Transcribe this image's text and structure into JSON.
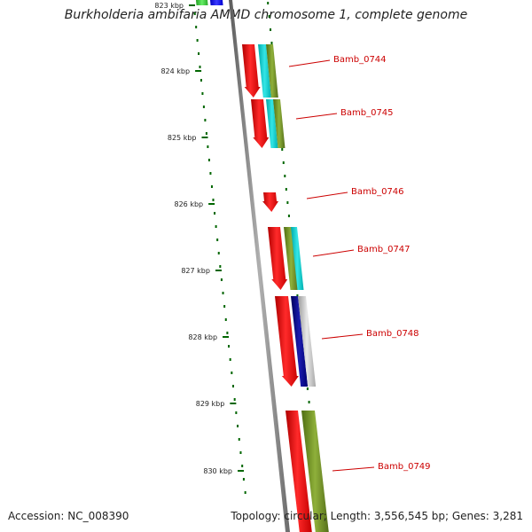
{
  "title": "Burkholderia ambifaria AMMD chromosome 1, complete genome",
  "footer": {
    "accession": "Accession: NC_008390",
    "summary": "Topology: circular; Length: 3,556,545 bp; Genes: 3,281"
  },
  "scale_ticks": [
    {
      "label": "823 kbp"
    },
    {
      "label": "824 kbp"
    },
    {
      "label": "825 kbp"
    },
    {
      "label": "826 kbp"
    },
    {
      "label": "827 kbp"
    },
    {
      "label": "828 kbp"
    },
    {
      "label": "829 kbp"
    },
    {
      "label": "830 kbp"
    }
  ],
  "genes": [
    {
      "label": "Bamb_0744"
    },
    {
      "label": "Bamb_0745"
    },
    {
      "label": "Bamb_0746"
    },
    {
      "label": "Bamb_0747"
    },
    {
      "label": "Bamb_0748"
    },
    {
      "label": "Bamb_0749"
    }
  ],
  "colors": {
    "gene": "#ff0000",
    "cog_green": "#6b8e23",
    "cog_cyan": "#00cccc",
    "cog_navy": "#000080",
    "cog_grey": "#c0c0c0",
    "cog_blue": "#0000ff",
    "cog_lightgreen": "#44cc44",
    "backbone": "#808080",
    "tick": "#006600",
    "label": "#cc0000"
  }
}
